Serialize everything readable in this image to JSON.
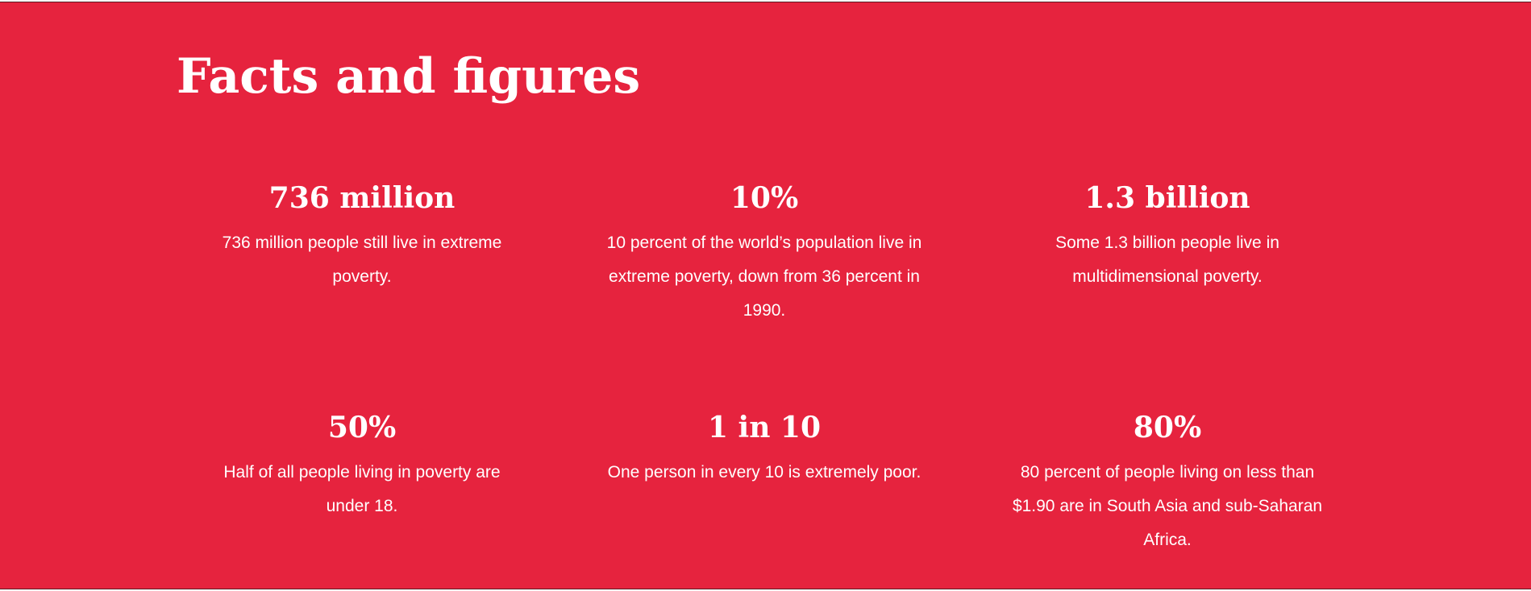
{
  "section": {
    "title": "Facts and figures",
    "background_color": "#e6233e",
    "text_color": "#ffffff"
  },
  "facts": [
    {
      "value": "736 million",
      "description": "736 million people still live in extreme poverty."
    },
    {
      "value": "10%",
      "description": "10 percent of the world’s population live in extreme poverty, down from 36 percent in 1990."
    },
    {
      "value": "1.3 billion",
      "description": "Some 1.3 billion people live in multidimensional poverty."
    },
    {
      "value": "50%",
      "description": "Half of all people living in poverty are under 18."
    },
    {
      "value": "1 in 10",
      "description": "One person in every 10 is extremely poor."
    },
    {
      "value": "80%",
      "description": "80 percent of people living on less than $1.90 are in South Asia and sub-Saharan Africa."
    }
  ]
}
